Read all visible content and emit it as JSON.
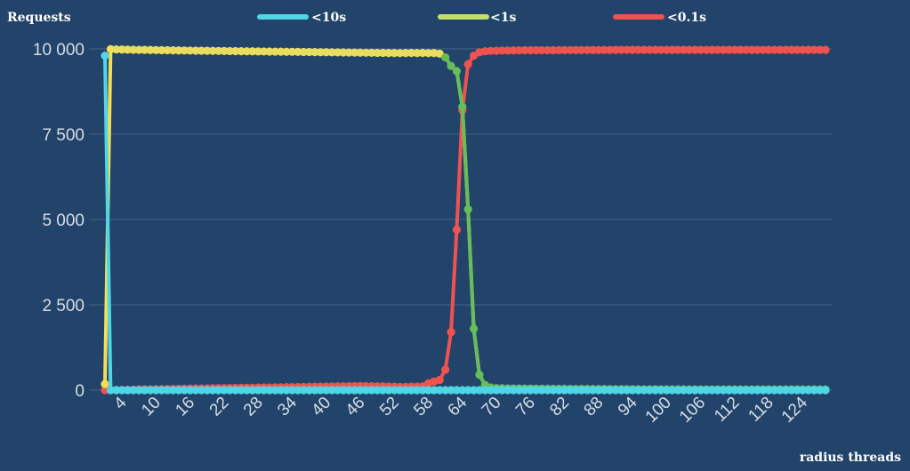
{
  "chart_data": {
    "type": "line",
    "ylabel": "Requests",
    "xlabel": "radius threads",
    "ylim": [
      0,
      10000
    ],
    "yticks": [
      "10 000",
      "7 500",
      "5 000",
      "2 500",
      "0"
    ],
    "ytick_values": [
      10000,
      7500,
      5000,
      2500,
      0
    ],
    "x": [
      1,
      2,
      3,
      4,
      5,
      6,
      7,
      8,
      9,
      10,
      11,
      12,
      13,
      14,
      15,
      16,
      17,
      18,
      19,
      20,
      21,
      22,
      23,
      24,
      25,
      26,
      27,
      28,
      29,
      30,
      31,
      32,
      33,
      34,
      35,
      36,
      37,
      38,
      39,
      40,
      41,
      42,
      43,
      44,
      45,
      46,
      47,
      48,
      49,
      50,
      51,
      52,
      53,
      54,
      55,
      56,
      57,
      58,
      59,
      60,
      61,
      62,
      63,
      64,
      65,
      66,
      67,
      68,
      69,
      70,
      71,
      72,
      73,
      74,
      75,
      76,
      77,
      78,
      79,
      80,
      81,
      82,
      83,
      84,
      85,
      86,
      87,
      88,
      89,
      90,
      91,
      92,
      93,
      94,
      95,
      96,
      97,
      98,
      99,
      100,
      101,
      102,
      103,
      104,
      105,
      106,
      107,
      108,
      109,
      110,
      111,
      112,
      113,
      114,
      115,
      116,
      117,
      118,
      119,
      120,
      121,
      122,
      123,
      124,
      125,
      126,
      127,
      128
    ],
    "xtick_labels": [
      "4",
      "10",
      "16",
      "22",
      "28",
      "34",
      "40",
      "46",
      "52",
      "58",
      "64",
      "70",
      "76",
      "82",
      "88",
      "94",
      "100",
      "106",
      "112",
      "118",
      "124"
    ],
    "xtick_values": [
      4,
      10,
      16,
      22,
      28,
      34,
      40,
      46,
      52,
      58,
      64,
      70,
      76,
      82,
      88,
      94,
      100,
      106,
      112,
      118,
      124
    ],
    "legend_position": "top",
    "series": [
      {
        "name": "<10s",
        "color": "#4fd6e6"
      },
      {
        "name": "<1s",
        "color": "#66bd5a",
        "early_color": "#f5dd55"
      },
      {
        "name": "<0.1s",
        "color": "#f0524f"
      }
    ],
    "series_values": {
      "s10": [
        9800,
        0,
        0,
        0,
        0,
        0,
        0,
        0,
        0,
        0,
        0,
        0,
        0,
        0,
        0,
        0,
        0,
        0,
        0,
        0,
        0,
        0,
        0,
        0,
        0,
        0,
        0,
        0,
        0,
        0,
        0,
        0,
        0,
        0,
        0,
        0,
        0,
        0,
        0,
        0,
        0,
        0,
        0,
        0,
        0,
        0,
        0,
        0,
        0,
        0,
        0,
        0,
        0,
        0,
        0,
        0,
        0,
        0,
        0,
        0,
        0,
        0,
        0,
        0,
        0,
        0,
        0,
        0,
        0,
        0,
        0,
        0,
        0,
        0,
        0,
        0,
        0,
        0,
        0,
        0,
        0,
        0,
        0,
        0,
        0,
        0,
        0,
        0,
        0,
        0,
        0,
        0,
        0,
        0,
        0,
        0,
        0,
        0,
        0,
        0,
        0,
        0,
        0,
        0,
        0,
        0,
        0,
        0,
        0,
        0,
        0,
        0,
        0,
        0,
        0,
        0,
        0,
        0,
        0,
        0,
        0,
        0,
        0,
        0,
        0,
        0,
        0,
        0
      ],
      "s1": [
        180,
        9990,
        9985,
        9980,
        9978,
        9975,
        9972,
        9970,
        9968,
        9965,
        9962,
        9960,
        9958,
        9955,
        9953,
        9950,
        9948,
        9946,
        9944,
        9942,
        9940,
        9938,
        9936,
        9934,
        9932,
        9930,
        9928,
        9926,
        9924,
        9922,
        9920,
        9918,
        9916,
        9914,
        9912,
        9910,
        9908,
        9906,
        9904,
        9902,
        9900,
        9898,
        9896,
        9894,
        9892,
        9890,
        9888,
        9886,
        9884,
        9882,
        9880,
        9880,
        9878,
        9880,
        9882,
        9880,
        9882,
        9878,
        9880,
        9860,
        9750,
        9500,
        9350,
        8300,
        5300,
        1800,
        450,
        150,
        80,
        60,
        55,
        50,
        50,
        48,
        46,
        45,
        44,
        43,
        42,
        41,
        40,
        39,
        38,
        37,
        36,
        35,
        34,
        33,
        32,
        31,
        30,
        29,
        28,
        27,
        26,
        25,
        25,
        24,
        24,
        23,
        23,
        22,
        22,
        21,
        21,
        20,
        20,
        20,
        20,
        20,
        20,
        20,
        20,
        20,
        20,
        20,
        20,
        20,
        20,
        20,
        20,
        20,
        20,
        20,
        20,
        20,
        20,
        20
      ],
      "s01": [
        0,
        0,
        0,
        5,
        10,
        15,
        20,
        22,
        25,
        28,
        30,
        33,
        36,
        40,
        42,
        45,
        48,
        50,
        52,
        55,
        58,
        60,
        62,
        65,
        68,
        70,
        72,
        75,
        78,
        80,
        82,
        85,
        88,
        90,
        92,
        95,
        98,
        100,
        102,
        105,
        108,
        110,
        112,
        115,
        118,
        120,
        118,
        115,
        112,
        110,
        105,
        100,
        95,
        95,
        100,
        105,
        110,
        200,
        250,
        300,
        600,
        1700,
        4700,
        8200,
        9550,
        9800,
        9900,
        9930,
        9940,
        9945,
        9950,
        9952,
        9955,
        9958,
        9960,
        9960,
        9960,
        9962,
        9962,
        9962,
        9965,
        9965,
        9965,
        9965,
        9965,
        9968,
        9968,
        9968,
        9968,
        9968,
        9970,
        9970,
        9970,
        9970,
        9970,
        9970,
        9970,
        9970,
        9970,
        9970,
        9970,
        9970,
        9970,
        9970,
        9970,
        9970,
        9970,
        9970,
        9970,
        9970,
        9970,
        9970,
        9970,
        9970,
        9970,
        9970,
        9970,
        9970,
        9970,
        9970,
        9970,
        9970,
        9970,
        9970,
        9970,
        9970,
        9970,
        9970
      ]
    }
  }
}
